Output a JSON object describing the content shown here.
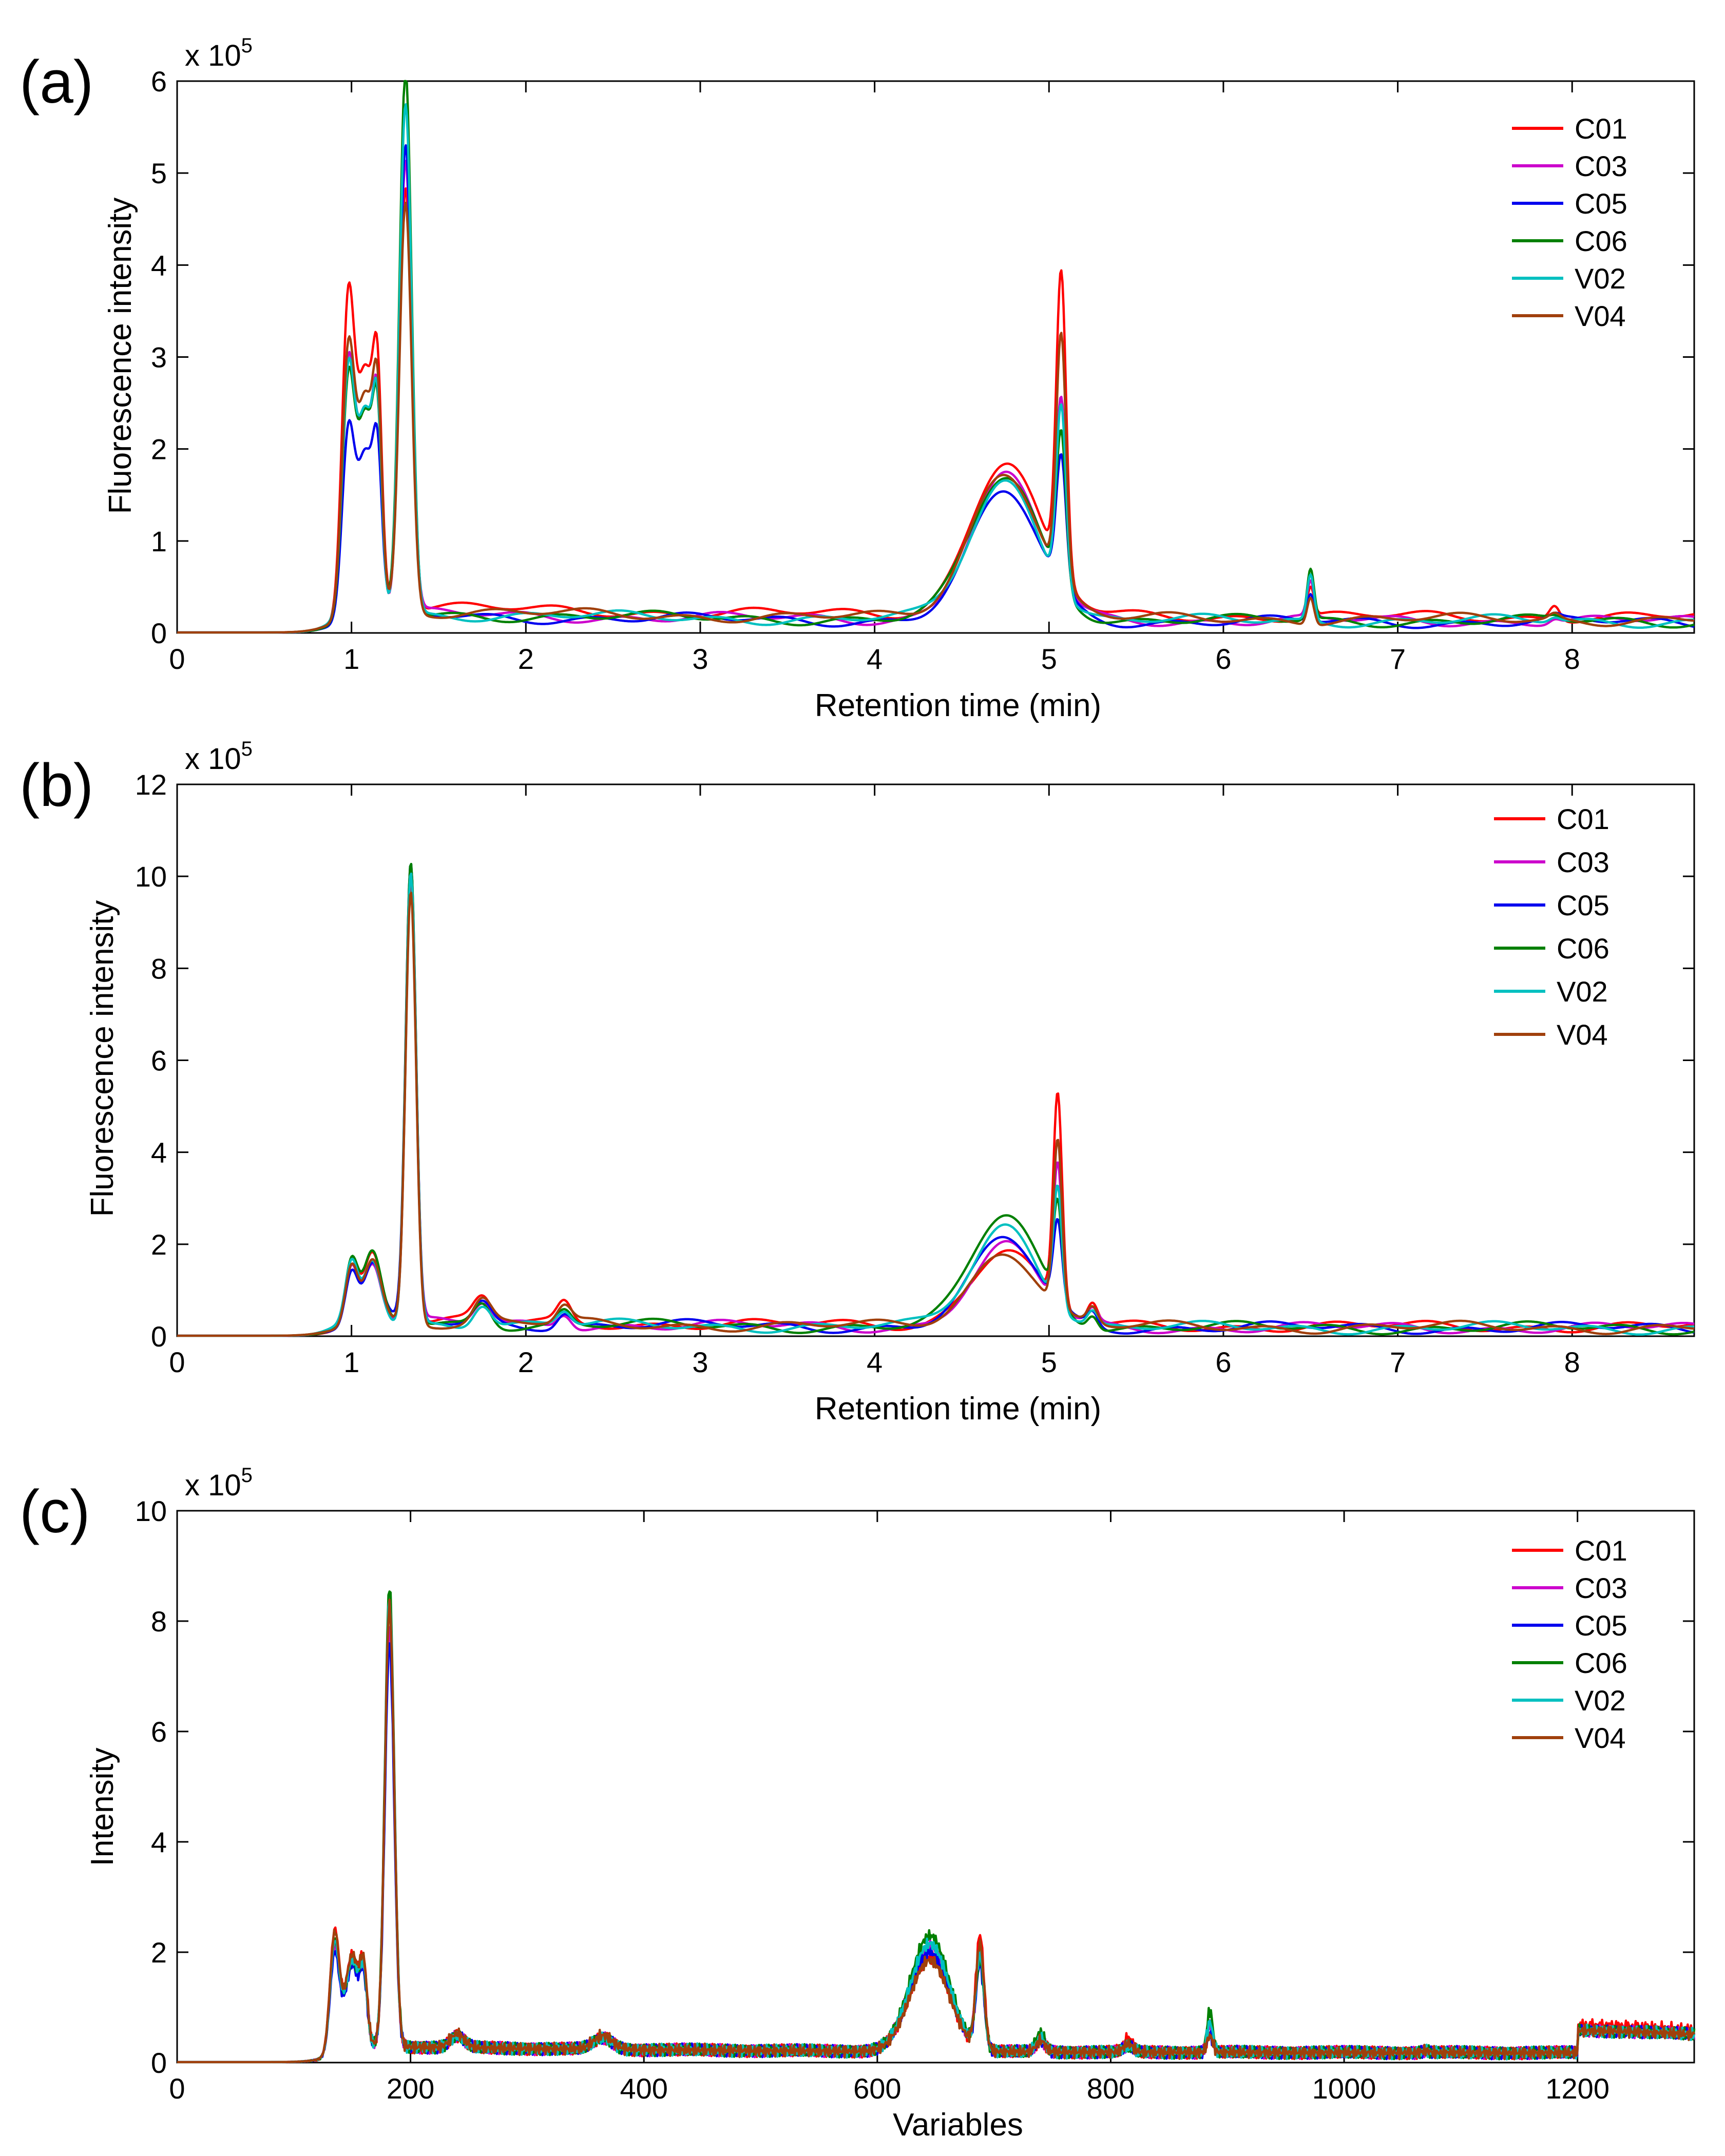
{
  "panels": [
    {
      "tag": "(a)",
      "scale": "x 10",
      "scale_exp": "5"
    },
    {
      "tag": "(b)",
      "scale": "x 10",
      "scale_exp": "5"
    },
    {
      "tag": "(c)",
      "scale": "x 10",
      "scale_exp": "5"
    }
  ],
  "colors": {
    "C01": "#ff0000",
    "C03": "#cc00cc",
    "C05": "#0000ee",
    "C06": "#008000",
    "V02": "#00c0c0",
    "V04": "#a0400c"
  },
  "chart_data": [
    {
      "type": "line",
      "panel": "(a)",
      "xlabel": "Retention time (min)",
      "ylabel": "Fluorescence intensity",
      "xlim": [
        0,
        8.7
      ],
      "ylim": [
        0,
        6
      ],
      "xticks": [
        0,
        1,
        2,
        3,
        4,
        5,
        6,
        7,
        8
      ],
      "yticks": [
        0,
        1,
        2,
        3,
        4,
        5,
        6
      ],
      "y_multiplier": "x 10^5",
      "legend": "top-right",
      "series": [
        {
          "name": "C01",
          "peaks": [
            [
              0.98,
              3.2,
              0.035
            ],
            [
              1.08,
              2.55,
              0.05
            ],
            [
              1.15,
              1.9,
              0.025
            ],
            [
              1.31,
              4.6,
              0.035
            ],
            [
              4.75,
              1.68,
              0.2
            ],
            [
              5.07,
              3.25,
              0.028
            ],
            [
              6.5,
              0.32,
              0.02
            ],
            [
              7.9,
              0.16,
              0.03
            ]
          ],
          "baseline": 0.3
        },
        {
          "name": "C03",
          "peaks": [
            [
              0.98,
              2.55,
              0.035
            ],
            [
              1.08,
              2.2,
              0.05
            ],
            [
              1.15,
              1.7,
              0.025
            ],
            [
              1.31,
              4.9,
              0.035
            ],
            [
              4.75,
              1.55,
              0.2
            ],
            [
              5.07,
              2.0,
              0.028
            ],
            [
              6.5,
              0.38,
              0.02
            ],
            [
              7.9,
              0.05,
              0.03
            ]
          ],
          "baseline": 0.22
        },
        {
          "name": "C05",
          "peaks": [
            [
              0.98,
              1.9,
              0.035
            ],
            [
              1.08,
              1.75,
              0.05
            ],
            [
              1.15,
              1.3,
              0.025
            ],
            [
              1.31,
              5.05,
              0.035
            ],
            [
              4.75,
              1.38,
              0.2
            ],
            [
              5.07,
              1.4,
              0.028
            ],
            [
              6.5,
              0.3,
              0.02
            ],
            [
              7.9,
              0.04,
              0.03
            ]
          ],
          "baseline": 0.2
        },
        {
          "name": "C06",
          "peaks": [
            [
              0.98,
              2.35,
              0.035
            ],
            [
              1.08,
              2.1,
              0.05
            ],
            [
              1.15,
              1.55,
              0.025
            ],
            [
              1.31,
              5.92,
              0.035
            ],
            [
              4.75,
              1.55,
              0.2
            ],
            [
              5.07,
              1.65,
              0.028
            ],
            [
              6.5,
              0.55,
              0.02
            ],
            [
              7.9,
              0.04,
              0.03
            ]
          ],
          "baseline": 0.22
        },
        {
          "name": "V02",
          "peaks": [
            [
              0.98,
              2.45,
              0.035
            ],
            [
              1.08,
              2.2,
              0.05
            ],
            [
              1.15,
              1.65,
              0.025
            ],
            [
              1.31,
              5.55,
              0.035
            ],
            [
              4.75,
              1.5,
              0.2
            ],
            [
              5.07,
              2.0,
              0.028
            ],
            [
              6.5,
              0.5,
              0.02
            ],
            [
              7.9,
              0.05,
              0.03
            ]
          ],
          "baseline": 0.22
        },
        {
          "name": "V04",
          "peaks": [
            [
              0.98,
              2.7,
              0.035
            ],
            [
              1.08,
              2.35,
              0.05
            ],
            [
              1.15,
              1.75,
              0.025
            ],
            [
              1.31,
              4.45,
              0.035
            ],
            [
              4.75,
              1.6,
              0.2
            ],
            [
              5.07,
              2.65,
              0.028
            ],
            [
              6.5,
              0.3,
              0.02
            ],
            [
              7.9,
              0.06,
              0.03
            ]
          ],
          "baseline": 0.25
        }
      ]
    },
    {
      "type": "line",
      "panel": "(b)",
      "xlabel": "Retention time (min)",
      "ylabel": "Fluorescence intensity",
      "xlim": [
        0,
        8.7
      ],
      "ylim": [
        0,
        12
      ],
      "xticks": [
        0,
        1,
        2,
        3,
        4,
        5,
        6,
        7,
        8
      ],
      "yticks": [
        0,
        2,
        4,
        6,
        8,
        10,
        12
      ],
      "y_multiplier": "x 10^5",
      "legend": "top-right",
      "series": [
        {
          "name": "C01",
          "peaks": [
            [
              1.0,
              1.35,
              0.035
            ],
            [
              1.12,
              1.5,
              0.05
            ],
            [
              1.34,
              9.6,
              0.03
            ],
            [
              1.75,
              0.5,
              0.05
            ],
            [
              2.22,
              0.42,
              0.04
            ],
            [
              4.75,
              1.7,
              0.19
            ],
            [
              5.05,
              4.5,
              0.025
            ],
            [
              5.25,
              0.45,
              0.03
            ]
          ],
          "baseline": 0.35
        },
        {
          "name": "C03",
          "peaks": [
            [
              1.0,
              1.25,
              0.035
            ],
            [
              1.12,
              1.35,
              0.05
            ],
            [
              1.34,
              9.7,
              0.03
            ],
            [
              1.75,
              0.45,
              0.05
            ],
            [
              2.22,
              0.3,
              0.04
            ],
            [
              4.75,
              1.75,
              0.19
            ],
            [
              5.05,
              3.1,
              0.025
            ],
            [
              5.25,
              0.3,
              0.03
            ]
          ],
          "baseline": 0.3
        },
        {
          "name": "C05",
          "peaks": [
            [
              1.0,
              1.15,
              0.035
            ],
            [
              1.12,
              1.25,
              0.05
            ],
            [
              1.34,
              9.9,
              0.03
            ],
            [
              1.75,
              0.45,
              0.05
            ],
            [
              2.22,
              0.3,
              0.04
            ],
            [
              4.75,
              1.9,
              0.19
            ],
            [
              5.05,
              1.75,
              0.025
            ],
            [
              5.25,
              0.3,
              0.03
            ]
          ],
          "baseline": 0.3
        },
        {
          "name": "C06",
          "peaks": [
            [
              1.0,
              1.3,
              0.035
            ],
            [
              1.12,
              1.45,
              0.05
            ],
            [
              1.34,
              10.05,
              0.03
            ],
            [
              1.75,
              0.5,
              0.05
            ],
            [
              2.22,
              0.3,
              0.04
            ],
            [
              4.75,
              2.45,
              0.19
            ],
            [
              5.05,
              2.1,
              0.025
            ],
            [
              5.25,
              0.3,
              0.03
            ]
          ],
          "baseline": 0.3
        },
        {
          "name": "V02",
          "peaks": [
            [
              1.0,
              1.3,
              0.035
            ],
            [
              1.12,
              1.4,
              0.05
            ],
            [
              1.34,
              9.8,
              0.03
            ],
            [
              1.75,
              0.5,
              0.05
            ],
            [
              2.22,
              0.3,
              0.04
            ],
            [
              4.75,
              2.2,
              0.19
            ],
            [
              5.05,
              2.6,
              0.025
            ],
            [
              5.25,
              0.3,
              0.03
            ]
          ],
          "baseline": 0.3
        },
        {
          "name": "V04",
          "peaks": [
            [
              1.0,
              1.3,
              0.035
            ],
            [
              1.12,
              1.4,
              0.05
            ],
            [
              1.34,
              9.4,
              0.03
            ],
            [
              1.75,
              0.5,
              0.05
            ],
            [
              2.22,
              0.35,
              0.04
            ],
            [
              4.75,
              1.65,
              0.19
            ],
            [
              5.05,
              3.6,
              0.025
            ],
            [
              5.25,
              0.35,
              0.03
            ]
          ],
          "baseline": 0.32
        }
      ]
    },
    {
      "type": "line",
      "panel": "(c)",
      "xlabel": "Variables",
      "ylabel": "Intensity",
      "xlim": [
        0,
        1300
      ],
      "ylim": [
        0,
        10
      ],
      "xticks": [
        0,
        200,
        400,
        600,
        800,
        1000,
        1200
      ],
      "yticks": [
        0,
        2,
        4,
        6,
        8,
        10
      ],
      "y_multiplier": "x 10^5",
      "legend": "top-right",
      "series": [
        {
          "name": "C01",
          "peaks": [
            [
              135,
              2.2,
              4
            ],
            [
              150,
              1.7,
              6
            ],
            [
              160,
              1.2,
              3
            ],
            [
              182,
              8.0,
              4
            ],
            [
              240,
              0.2,
              6
            ],
            [
              365,
              0.2,
              8
            ],
            [
              645,
              1.7,
              17
            ],
            [
              688,
              2.05,
              3.5
            ],
            [
              740,
              0.2,
              4
            ],
            [
              815,
              0.25,
              4
            ],
            [
              885,
              0.35,
              2.5
            ],
            [
              1070,
              0.05,
              3
            ]
          ],
          "baseline": 0.3,
          "step_at": 1200,
          "step_height": 0.5
        },
        {
          "name": "C03",
          "peaks": [
            [
              135,
              1.9,
              4
            ],
            [
              150,
              1.6,
              6
            ],
            [
              160,
              1.1,
              3
            ],
            [
              182,
              7.6,
              4
            ],
            [
              240,
              0.2,
              6
            ],
            [
              365,
              0.2,
              8
            ],
            [
              645,
              1.9,
              17
            ],
            [
              688,
              1.6,
              3.5
            ],
            [
              740,
              0.2,
              4
            ],
            [
              815,
              0.1,
              4
            ],
            [
              885,
              0.5,
              2.5
            ],
            [
              1070,
              0.03,
              3
            ]
          ],
          "baseline": 0.3,
          "step_at": 1200,
          "step_height": 0.4
        },
        {
          "name": "C05",
          "peaks": [
            [
              135,
              1.8,
              4
            ],
            [
              150,
              1.5,
              6
            ],
            [
              160,
              1.0,
              3
            ],
            [
              182,
              7.3,
              4
            ],
            [
              240,
              0.2,
              6
            ],
            [
              365,
              0.2,
              8
            ],
            [
              645,
              1.8,
              17
            ],
            [
              688,
              1.5,
              3.5
            ],
            [
              740,
              0.2,
              4
            ],
            [
              815,
              0.1,
              4
            ],
            [
              885,
              0.3,
              2.5
            ],
            [
              1070,
              0.03,
              3
            ]
          ],
          "baseline": 0.3,
          "step_at": 1200,
          "step_height": 0.4
        },
        {
          "name": "C06",
          "peaks": [
            [
              135,
              2.0,
              4
            ],
            [
              150,
              1.6,
              6
            ],
            [
              160,
              1.1,
              3
            ],
            [
              182,
              8.35,
              4
            ],
            [
              240,
              0.2,
              6
            ],
            [
              365,
              0.2,
              8
            ],
            [
              645,
              2.1,
              17
            ],
            [
              688,
              1.6,
              3.5
            ],
            [
              740,
              0.35,
              4
            ],
            [
              815,
              0.1,
              4
            ],
            [
              885,
              0.75,
              2.5
            ],
            [
              1070,
              0.03,
              3
            ]
          ],
          "baseline": 0.3,
          "step_at": 1200,
          "step_height": 0.4
        },
        {
          "name": "V02",
          "peaks": [
            [
              135,
              2.0,
              4
            ],
            [
              150,
              1.6,
              6
            ],
            [
              160,
              1.1,
              3
            ],
            [
              182,
              8.1,
              4
            ],
            [
              240,
              0.2,
              6
            ],
            [
              365,
              0.2,
              8
            ],
            [
              645,
              1.95,
              17
            ],
            [
              688,
              1.7,
              3.5
            ],
            [
              740,
              0.25,
              4
            ],
            [
              815,
              0.1,
              4
            ],
            [
              885,
              0.55,
              2.5
            ],
            [
              1070,
              0.03,
              3
            ]
          ],
          "baseline": 0.3,
          "step_at": 1200,
          "step_height": 0.4
        },
        {
          "name": "V04",
          "peaks": [
            [
              135,
              2.15,
              4
            ],
            [
              150,
              1.7,
              6
            ],
            [
              160,
              1.2,
              3
            ],
            [
              182,
              8.0,
              4
            ],
            [
              240,
              0.25,
              6
            ],
            [
              365,
              0.25,
              8
            ],
            [
              645,
              1.65,
              17
            ],
            [
              688,
              1.9,
              3.5
            ],
            [
              740,
              0.2,
              4
            ],
            [
              815,
              0.15,
              4
            ],
            [
              885,
              0.3,
              2.5
            ],
            [
              1070,
              0.04,
              3
            ]
          ],
          "baseline": 0.3,
          "step_at": 1200,
          "step_height": 0.4
        }
      ]
    }
  ]
}
